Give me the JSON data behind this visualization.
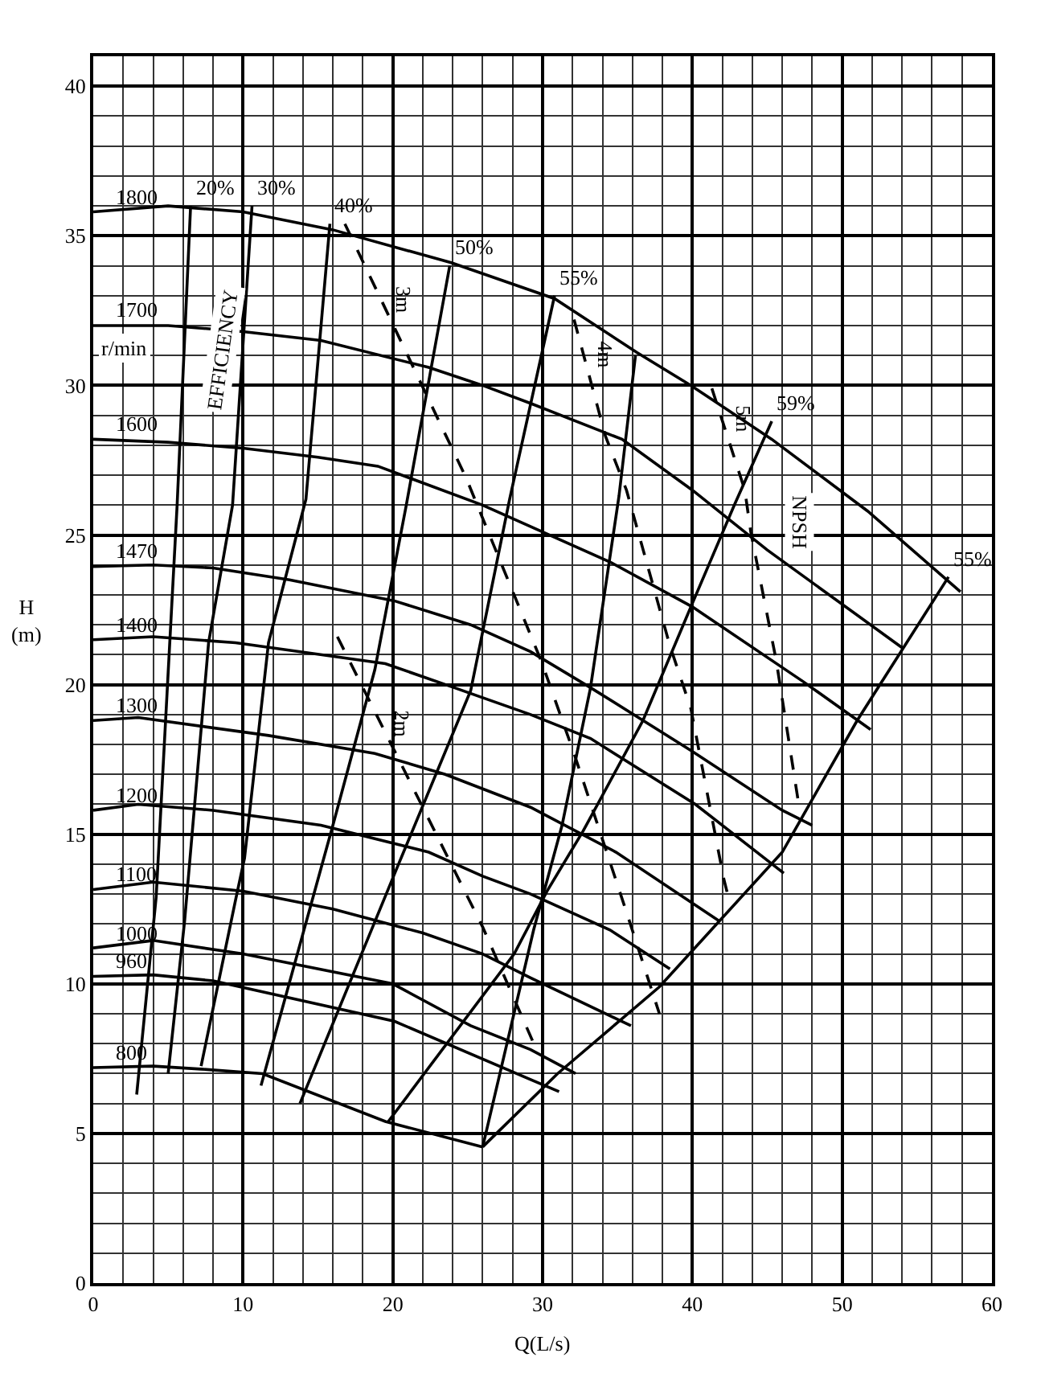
{
  "chart_data": {
    "type": "line",
    "xlabel": "Q(L/s)",
    "ylabel": "H\n(m)",
    "xlim": [
      0,
      60
    ],
    "ylim": [
      0,
      41
    ],
    "xticks": [
      0,
      10,
      20,
      30,
      40,
      50,
      60
    ],
    "yticks": [
      0,
      5,
      10,
      15,
      20,
      25,
      30,
      35,
      40
    ],
    "grid": true,
    "legend": false,
    "marker": "none",
    "series": [
      {
        "name": "1800",
        "color": "#000000",
        "x": [
          0,
          5,
          10,
          16,
          23.9,
          30.8,
          36.3,
          39.9,
          45.3,
          51.7,
          57.9
        ],
        "values": [
          35.8,
          36.0,
          35.8,
          35.2,
          34.1,
          32.9,
          31.1,
          30.0,
          28.2,
          25.8,
          23.1
        ]
      },
      {
        "name": "1700",
        "color": "#000000",
        "x": [
          0,
          5,
          10,
          15.2,
          22.4,
          26,
          29.2,
          35.3,
          40,
          45,
          54.1
        ],
        "values": [
          32.0,
          32.0,
          31.8,
          31.5,
          30.6,
          30.0,
          29.4,
          28.2,
          26.5,
          24.5,
          21.2
        ]
      },
      {
        "name": "1600",
        "color": "#000000",
        "x": [
          0,
          5,
          10,
          15,
          19,
          26,
          34.5,
          40,
          47.4,
          51.9
        ],
        "values": [
          28.2,
          28.1,
          27.9,
          27.6,
          27.3,
          26.0,
          24.1,
          22.6,
          20.1,
          18.5
        ]
      },
      {
        "name": "1470",
        "color": "#000000",
        "x": [
          0,
          4,
          8,
          13.1,
          20.1,
          25.2,
          29.2,
          33.2,
          39.9,
          46.0,
          48.0
        ],
        "values": [
          23.95,
          24.0,
          23.9,
          23.5,
          22.8,
          22.0,
          21.1,
          19.9,
          17.8,
          15.8,
          15.3
        ]
      },
      {
        "name": "1400",
        "color": "#000000",
        "x": [
          0,
          4,
          9.5,
          19.5,
          24.1,
          29.2,
          33.2,
          40.2,
          46.1
        ],
        "values": [
          21.5,
          21.6,
          21.4,
          20.7,
          19.9,
          19.0,
          18.2,
          16.0,
          13.7
        ]
      },
      {
        "name": "1300",
        "color": "#000000",
        "x": [
          0,
          3,
          11.7,
          18.8,
          23.5,
          29.2,
          34.9,
          41.8
        ],
        "values": [
          18.8,
          18.9,
          18.3,
          17.7,
          17.0,
          15.9,
          14.4,
          12.1
        ]
      },
      {
        "name": "1200",
        "color": "#000000",
        "x": [
          0,
          3,
          8,
          15.2,
          22.4,
          26,
          29.2,
          34.5,
          38.5
        ],
        "values": [
          15.8,
          16.0,
          15.8,
          15.3,
          14.4,
          13.6,
          13.0,
          11.8,
          10.5
        ]
      },
      {
        "name": "1100",
        "color": "#000000",
        "x": [
          0,
          4,
          10,
          16,
          22,
          26,
          29.2,
          35.9
        ],
        "values": [
          13.15,
          13.4,
          13.1,
          12.5,
          11.7,
          11.0,
          10.2,
          8.6
        ]
      },
      {
        "name": "1000",
        "color": "#000000",
        "x": [
          0,
          4,
          10,
          20,
          25.2,
          29.2,
          32.2
        ],
        "values": [
          11.2,
          11.45,
          11.0,
          10.0,
          8.6,
          7.8,
          7.0
        ]
      },
      {
        "name": "960",
        "color": "#000000",
        "x": [
          0,
          4,
          8,
          20.1,
          29.2,
          31.1
        ],
        "values": [
          10.25,
          10.3,
          10.1,
          8.75,
          6.8,
          6.4
        ]
      },
      {
        "name": "800",
        "color": "#000000",
        "x": [
          0,
          4,
          7.2,
          11.3,
          19.5,
          26
        ],
        "values": [
          7.2,
          7.25,
          7.15,
          7.0,
          5.4,
          4.55
        ]
      },
      {
        "name": "20%",
        "color": "#000000",
        "x": [
          6.5,
          5.6,
          4.2,
          2.9
        ],
        "values": [
          36.0,
          26.0,
          12.9,
          6.3
        ]
      },
      {
        "name": "30%",
        "color": "#000000",
        "x": [
          10.6,
          9.3,
          7.7,
          6.1,
          5.0
        ],
        "values": [
          36.0,
          26.0,
          21.4,
          12.1,
          7.0
        ]
      },
      {
        "name": "40%",
        "color": "#000000",
        "x": [
          15.8,
          14.2,
          11.7,
          10.1,
          9.5,
          7.2
        ],
        "values": [
          35.4,
          26.2,
          21.4,
          14.2,
          12.8,
          7.25
        ]
      },
      {
        "name": "50%",
        "color": "#000000",
        "x": [
          23.8,
          20.9,
          18.8,
          16.0,
          11.2
        ],
        "values": [
          34.0,
          26.0,
          20.5,
          15.3,
          6.6
        ]
      },
      {
        "name": "55%",
        "color": "#000000",
        "x": [
          30.8,
          27.8,
          25.2,
          20.3,
          13.8
        ],
        "values": [
          33.0,
          26.2,
          19.8,
          13.9,
          6.0
        ]
      },
      {
        "name": "59%",
        "color": "#000000",
        "x": [
          45.3,
          42.8,
          39.9,
          36.7,
          32.7,
          30.3,
          28.1,
          19.7
        ],
        "values": [
          28.8,
          26.0,
          22.6,
          18.8,
          15.1,
          13.1,
          11.0,
          5.4
        ]
      },
      {
        "name": "55%",
        "color": "#000000",
        "x": [
          57.1,
          51.0,
          46.0,
          37.8,
          31,
          26
        ],
        "values": [
          23.6,
          18.8,
          14.4,
          9.9,
          7.0,
          4.55
        ]
      },
      {
        "color": "#000000",
        "x": [
          36.2,
          35.1,
          33.2,
          31.3,
          29.4,
          26
        ],
        "values": [
          31.0,
          26.3,
          19.9,
          15.3,
          11.8,
          4.55
        ]
      },
      {
        "name": "2m",
        "color": "#000000",
        "line_style": "dashed",
        "x": [
          16.3,
          26,
          29.5
        ],
        "values": [
          21.6,
          11.9,
          7.9
        ]
      },
      {
        "name": "3m",
        "color": "#000000",
        "line_style": "dashed",
        "x": [
          16.8,
          24.9,
          29.9,
          32.1,
          35.6,
          37.8
        ],
        "values": [
          35.4,
          26.9,
          20.8,
          17.7,
          12.4,
          9.0
        ]
      },
      {
        "name": "4m",
        "color": "#000000",
        "line_style": "dashed",
        "x": [
          32.1,
          34.2,
          35.6,
          38.5,
          39.9,
          42.1,
          42.4
        ],
        "values": [
          32.2,
          28.3,
          26.5,
          21.3,
          19.2,
          13.5,
          12.9
        ]
      },
      {
        "name": "5m",
        "color": "#000000",
        "line_style": "dashed",
        "x": [
          41.3,
          43.5,
          43.9,
          45.6,
          47.1
        ],
        "values": [
          29.9,
          26.5,
          25.1,
          20.8,
          16.0
        ]
      }
    ],
    "annotations": [
      "r/min",
      "EFFICIENCY",
      "NPSH"
    ]
  }
}
